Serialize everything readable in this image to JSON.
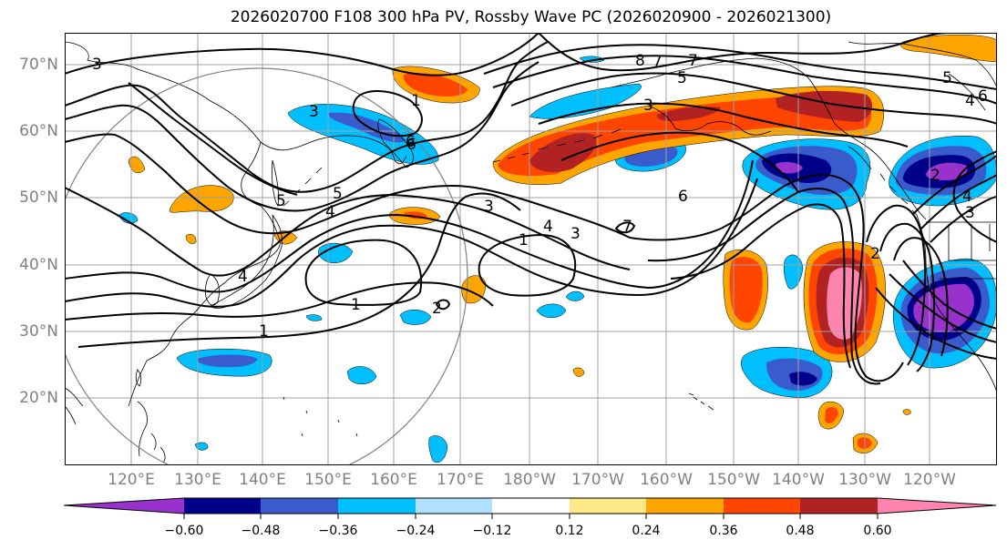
{
  "title": "2026020700 F108 300 hPa PV, Rossby Wave PC (2026020900 - 2026021300)",
  "lat_labels": [
    "70°N",
    "60°N",
    "50°N",
    "40°N",
    "30°N",
    "20°N"
  ],
  "lon_labels": [
    "120°E",
    "130°E",
    "140°E",
    "150°E",
    "160°E",
    "170°E",
    "180°W",
    "170°W",
    "160°W",
    "150°W",
    "140°W",
    "130°W",
    "120°W"
  ],
  "contour_labels": [
    "3",
    "8",
    "7",
    "5",
    "5",
    "4",
    "6",
    "3",
    "1",
    "6",
    "5",
    "4",
    "3",
    "2",
    "1",
    "5",
    "4",
    "3",
    "4",
    "1",
    "1",
    "7",
    "6",
    "2",
    "2",
    "4",
    "3",
    "3",
    "6",
    "7"
  ],
  "colorbar": {
    "ticks": [
      "−0.60",
      "−0.48",
      "−0.36",
      "−0.24",
      "−0.12",
      "0.12",
      "0.24",
      "0.36",
      "0.48",
      "0.60"
    ],
    "colors": [
      "#9932cc",
      "#00008b",
      "#3a5bcc",
      "#00bfff",
      "#b0e0ff",
      "#ffffff",
      "#ffe885",
      "#ffa500",
      "#ff4500",
      "#b22222",
      "#ff85b0"
    ]
  },
  "colors": {
    "coastline": "#000000",
    "grid": "#a0a0a0",
    "contour": "#000000",
    "circle": "#808080"
  }
}
